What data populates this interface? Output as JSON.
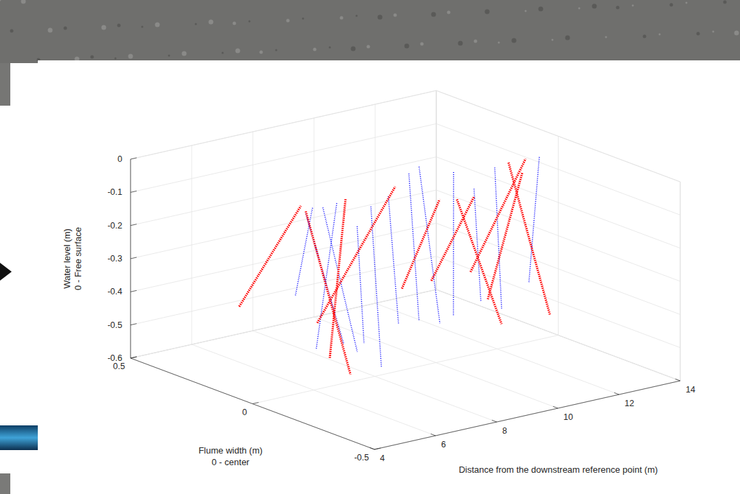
{
  "chart_data": {
    "type": "line3d",
    "x_label": "Distance from the downstream reference point (m)",
    "y_label": [
      "Flume width (m)",
      "0 - center"
    ],
    "z_label": [
      "Water level (m)",
      "0 - Free surface"
    ],
    "xlim": [
      4,
      14
    ],
    "xticks": [
      4,
      6,
      8,
      10,
      12,
      14
    ],
    "ylim": [
      -0.5,
      0.5
    ],
    "yticks": [
      -0.5,
      0,
      0.5
    ],
    "zlim": [
      -0.6,
      0
    ],
    "zticks": [
      -0.6,
      -0.5,
      -0.4,
      -0.3,
      -0.2,
      -0.1,
      0
    ],
    "grid": true,
    "series": [
      {
        "color": "#0000ff",
        "line_style": "dotted",
        "x": [
          7.0,
          8.36,
          null,
          7.34,
          6.98,
          null,
          7.1,
          6.63,
          null,
          8.35,
          6.08,
          null,
          8.67,
          6.62,
          null,
          8.22,
          6.85,
          null,
          10.71,
          8.65,
          null,
          11.84,
          9.33,
          null,
          12.97,
          10.57,
          null,
          12.84,
          10.67,
          null,
          13.52,
          11.35,
          null,
          13.38,
          13.04,
          null,
          9.24,
          7.18
        ],
        "y": [
          0.2,
          0.3,
          null,
          0.2,
          0,
          null,
          0.1,
          -0.1,
          null,
          0.2,
          0,
          null,
          0.1,
          -0.2,
          null,
          0.1,
          -0.1,
          null,
          0.2,
          -0.1,
          null,
          0.3,
          -0.1,
          null,
          0.3,
          0,
          null,
          0.2,
          -0.1,
          null,
          0.2,
          -0.1,
          null,
          0,
          0,
          null,
          0.1,
          -0.2
        ],
        "z": [
          -0.39,
          -0.18,
          null,
          -0.15,
          -0.48,
          null,
          -0.1,
          -0.47,
          null,
          -0.14,
          -0.48,
          null,
          -0.13,
          -0.49,
          null,
          -0.18,
          -0.45,
          null,
          -0.1,
          -0.42,
          null,
          -0.13,
          -0.44,
          null,
          -0.17,
          -0.47,
          null,
          -0.19,
          -0.4,
          null,
          -0.14,
          -0.44,
          null,
          -0.05,
          -0.42,
          null,
          -0.11,
          -0.37
        ]
      },
      {
        "color": "#ff0000",
        "line_style": "dotted",
        "x": [
          5.96,
          6.38,
          null,
          6.54,
          5.61,
          null,
          7.84,
          5.73,
          null,
          6.12,
          10.26,
          null,
          8.09,
          10.12,
          null,
          9.85,
          12.04,
          null,
          12.28,
          10.55,
          null,
          11.13,
          13.73,
          null,
          13.17,
          11.33,
          null,
          10.9,
          13.62
        ],
        "y": [
          0.3,
          0.1,
          null,
          0.1,
          -0.2,
          null,
          0.1,
          -0.1,
          null,
          0,
          0.2,
          null,
          -0.1,
          0,
          null,
          0,
          0.1,
          null,
          0.2,
          -0.2,
          null,
          0,
          0.1,
          null,
          0.1,
          -0.3,
          null,
          -0.1,
          0.1
        ],
        "z": [
          -0.43,
          -0.08,
          null,
          -0.1,
          -0.49,
          null,
          -0.09,
          -0.47,
          null,
          -0.4,
          -0.13,
          null,
          -0.31,
          -0.11,
          null,
          -0.35,
          -0.17,
          null,
          -0.21,
          -0.44,
          null,
          -0.35,
          -0.09,
          null,
          -0.09,
          -0.4,
          null,
          -0.4,
          -0.13
        ]
      }
    ]
  }
}
